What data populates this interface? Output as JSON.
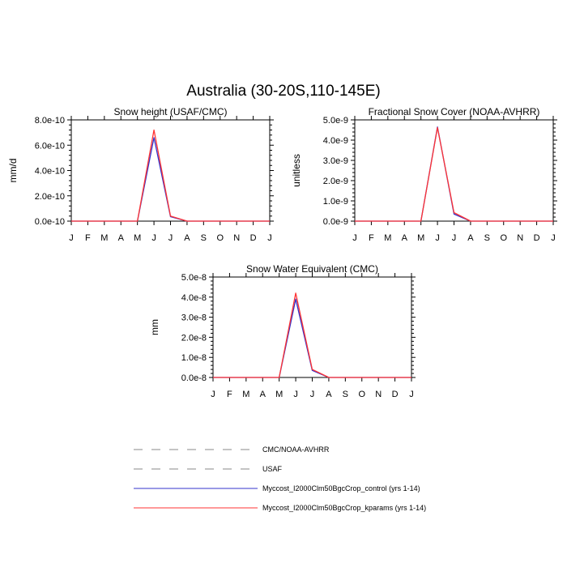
{
  "figure": {
    "title": "Australia (30-20S,110-145E)"
  },
  "colors": {
    "control": "#3333cc",
    "kparams": "#ff3333",
    "obs_dashed": "#888888",
    "axis": "#000000"
  },
  "chart_data": [
    {
      "type": "line",
      "title": "Snow height (USAF/CMC)",
      "ylabel": "mm/d",
      "xlabel": "",
      "categories": [
        "J",
        "F",
        "M",
        "A",
        "M",
        "J",
        "J",
        "A",
        "S",
        "O",
        "N",
        "D",
        "J"
      ],
      "ylim": [
        0,
        8e-10
      ],
      "yticks": [
        0,
        2e-10,
        4e-10,
        6e-10,
        8e-10
      ],
      "yticklabels": [
        "0.0e-10",
        "2.0e-10",
        "4.0e-10",
        "6.0e-10",
        "8.0e-10"
      ],
      "grid": false,
      "series": [
        {
          "name": "Myccost_I2000Clm50BgcCrop_control (yrs 1-14)",
          "color_key": "control",
          "values": [
            0,
            0,
            0,
            0,
            0,
            6.6e-10,
            3.5e-11,
            0,
            0,
            0,
            0,
            0,
            0
          ]
        },
        {
          "name": "Myccost_I2000Clm50BgcCrop_kparams (yrs 1-14)",
          "color_key": "kparams",
          "values": [
            0,
            0,
            0,
            0,
            0,
            7.2e-10,
            4e-11,
            0,
            0,
            0,
            0,
            0,
            0
          ]
        }
      ]
    },
    {
      "type": "line",
      "title": "Fractional Snow Cover (NOAA-AVHRR)",
      "ylabel": "unitless",
      "xlabel": "",
      "categories": [
        "J",
        "F",
        "M",
        "A",
        "M",
        "J",
        "J",
        "A",
        "S",
        "O",
        "N",
        "D",
        "J"
      ],
      "ylim": [
        0,
        5e-09
      ],
      "yticks": [
        0,
        1e-09,
        2e-09,
        3e-09,
        4e-09,
        5e-09
      ],
      "yticklabels": [
        "0.0e-9",
        "1.0e-9",
        "2.0e-9",
        "3.0e-9",
        "4.0e-9",
        "5.0e-9"
      ],
      "grid": false,
      "series": [
        {
          "name": "Myccost_I2000Clm50BgcCrop_control (yrs 1-14)",
          "color_key": "control",
          "values": [
            0,
            0,
            0,
            0,
            0,
            4.65e-09,
            3.5e-10,
            0,
            0,
            0,
            0,
            0,
            0
          ]
        },
        {
          "name": "Myccost_I2000Clm50BgcCrop_kparams (yrs 1-14)",
          "color_key": "kparams",
          "values": [
            0,
            0,
            0,
            0,
            0,
            4.62e-09,
            4.2e-10,
            0,
            0,
            0,
            0,
            0,
            0
          ]
        }
      ]
    },
    {
      "type": "line",
      "title": "Snow Water Equivalent (CMC)",
      "ylabel": "mm",
      "xlabel": "",
      "categories": [
        "J",
        "F",
        "M",
        "A",
        "M",
        "J",
        "J",
        "A",
        "S",
        "O",
        "N",
        "D",
        "J"
      ],
      "ylim": [
        0,
        5e-08
      ],
      "yticks": [
        0,
        1e-08,
        2e-08,
        3e-08,
        4e-08,
        5e-08
      ],
      "yticklabels": [
        "0.0e-8",
        "1.0e-8",
        "2.0e-8",
        "3.0e-8",
        "4.0e-8",
        "5.0e-8"
      ],
      "grid": false,
      "series": [
        {
          "name": "Myccost_I2000Clm50BgcCrop_control (yrs 1-14)",
          "color_key": "control",
          "values": [
            0,
            0,
            0,
            0,
            0,
            3.9e-08,
            3.5e-09,
            0,
            0,
            0,
            0,
            0,
            0
          ]
        },
        {
          "name": "Myccost_I2000Clm50BgcCrop_kparams (yrs 1-14)",
          "color_key": "kparams",
          "values": [
            0,
            0,
            0,
            0,
            0,
            4.2e-08,
            4e-09,
            0,
            0,
            0,
            0,
            0,
            0
          ]
        }
      ]
    }
  ],
  "legend": {
    "placement": "bottom-center",
    "entries": [
      {
        "label": "CMC/NOAA-AVHRR",
        "style": "dashed",
        "color_key": "obs_dashed"
      },
      {
        "label": "USAF",
        "style": "dashed",
        "color_key": "obs_dashed"
      },
      {
        "label": "Myccost_I2000Clm50BgcCrop_control (yrs 1-14)",
        "style": "solid",
        "color_key": "control"
      },
      {
        "label": "Myccost_I2000Clm50BgcCrop_kparams (yrs 1-14)",
        "style": "solid",
        "color_key": "kparams"
      }
    ]
  }
}
